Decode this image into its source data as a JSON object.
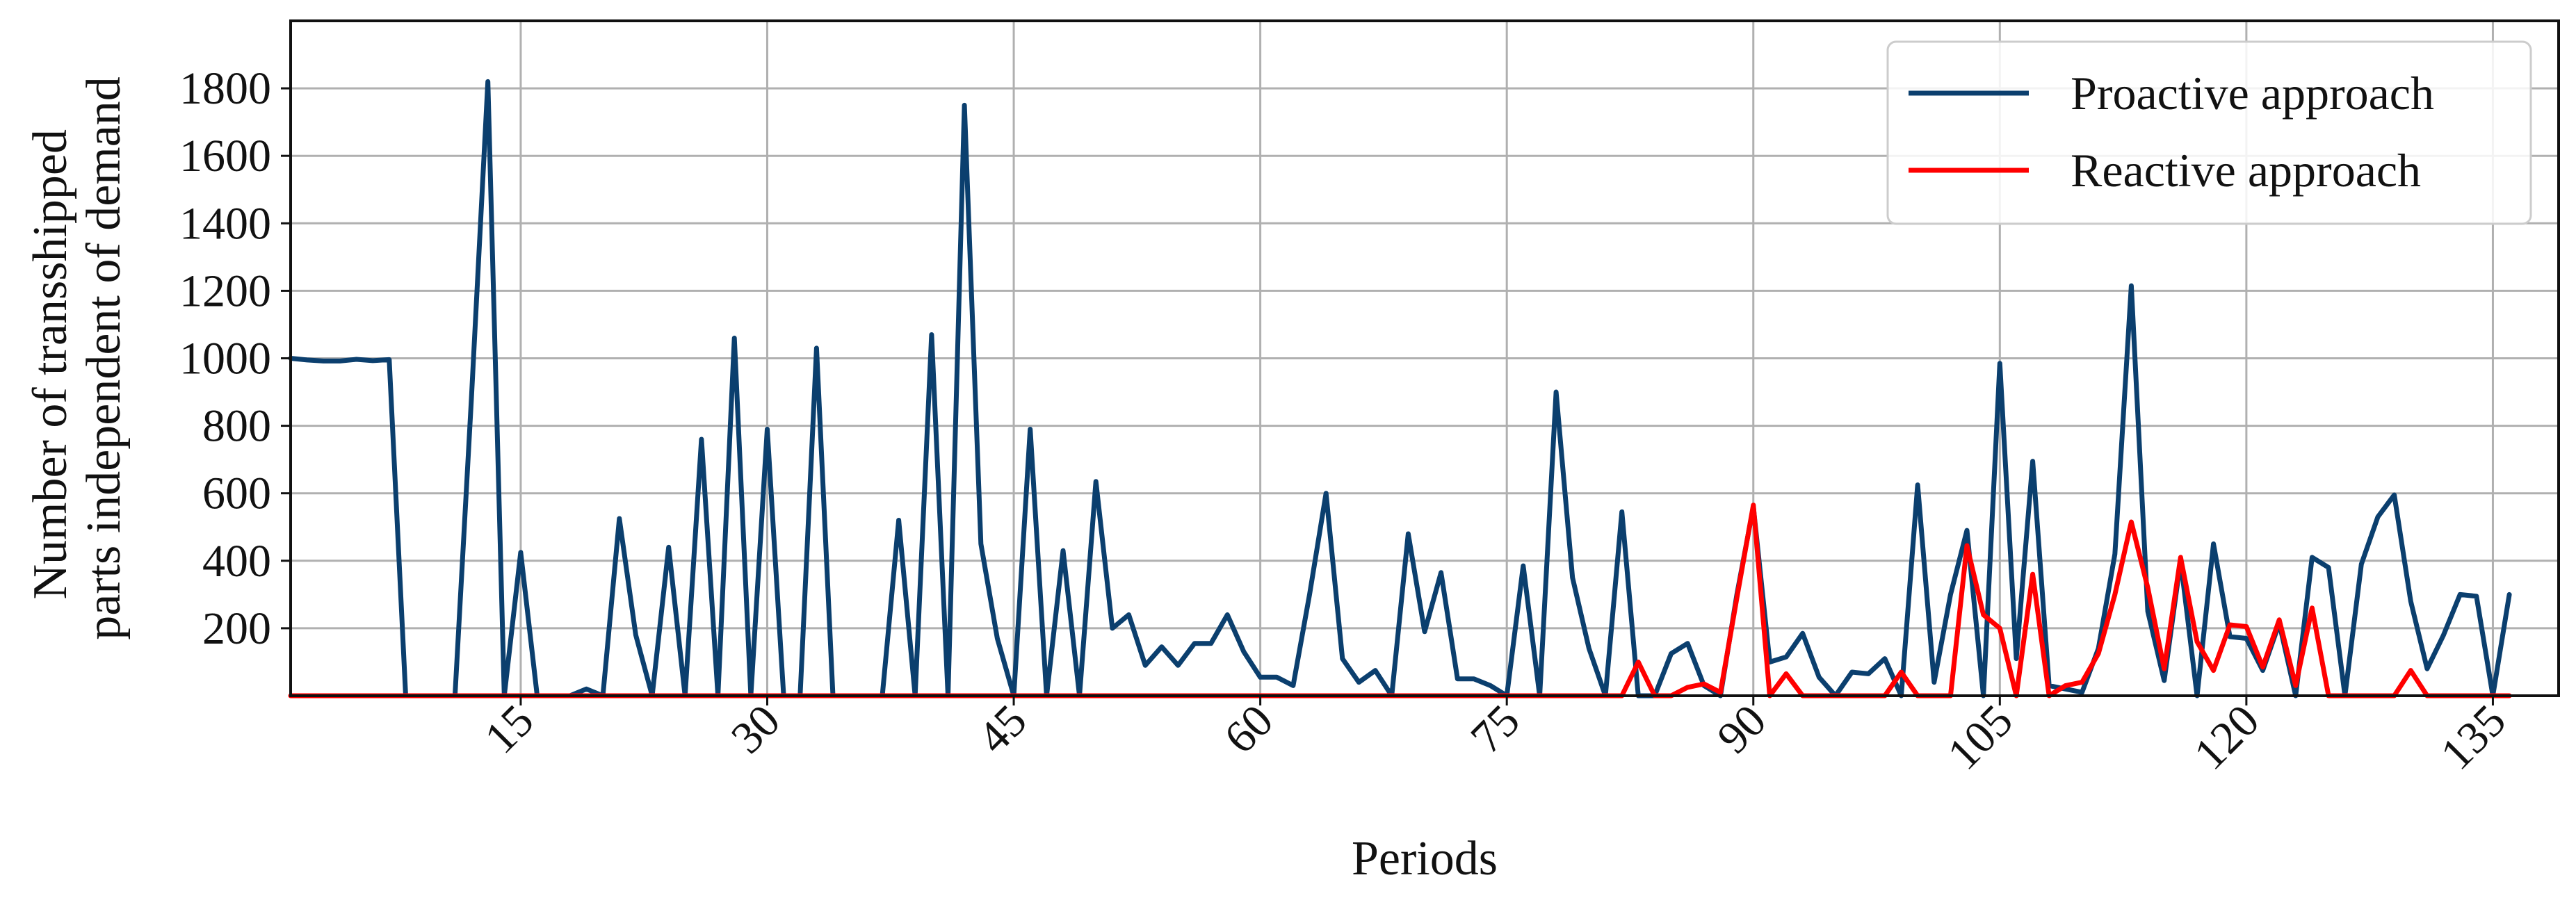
{
  "chart_data": {
    "type": "line",
    "xlabel": "Periods",
    "ylabel": [
      "Number of transshipped",
      "parts independent of demand"
    ],
    "xlim": [
      1,
      139
    ],
    "ylim": [
      0,
      2000
    ],
    "xticks": [
      15,
      30,
      45,
      60,
      75,
      90,
      105,
      120,
      135
    ],
    "yticks": [
      200,
      400,
      600,
      800,
      1000,
      1200,
      1400,
      1600,
      1800
    ],
    "grid": true,
    "legend_position": "top-right",
    "series": [
      {
        "name": "Proactive approach",
        "color": "#0b3f6e",
        "points": [
          [
            1,
            1000
          ],
          [
            2,
            995
          ],
          [
            3,
            992
          ],
          [
            4,
            992
          ],
          [
            5,
            997
          ],
          [
            6,
            993
          ],
          [
            7,
            996
          ],
          [
            8,
            0
          ],
          [
            9,
            0
          ],
          [
            10,
            0
          ],
          [
            11,
            0
          ],
          [
            12,
            880
          ],
          [
            13,
            1820
          ],
          [
            14,
            0
          ],
          [
            15,
            425
          ],
          [
            16,
            0
          ],
          [
            17,
            0
          ],
          [
            18,
            0
          ],
          [
            19,
            20
          ],
          [
            20,
            0
          ],
          [
            21,
            525
          ],
          [
            22,
            180
          ],
          [
            23,
            0
          ],
          [
            24,
            440
          ],
          [
            25,
            0
          ],
          [
            26,
            760
          ],
          [
            27,
            0
          ],
          [
            28,
            1060
          ],
          [
            29,
            0
          ],
          [
            30,
            790
          ],
          [
            31,
            0
          ],
          [
            32,
            0
          ],
          [
            33,
            1030
          ],
          [
            34,
            0
          ],
          [
            35,
            0
          ],
          [
            36,
            0
          ],
          [
            37,
            0
          ],
          [
            38,
            520
          ],
          [
            39,
            0
          ],
          [
            40,
            1070
          ],
          [
            41,
            0
          ],
          [
            42,
            1750
          ],
          [
            43,
            450
          ],
          [
            44,
            170
          ],
          [
            45,
            0
          ],
          [
            46,
            790
          ],
          [
            47,
            0
          ],
          [
            48,
            430
          ],
          [
            49,
            0
          ],
          [
            50,
            635
          ],
          [
            51,
            200
          ],
          [
            52,
            240
          ],
          [
            53,
            90
          ],
          [
            54,
            145
          ],
          [
            55,
            90
          ],
          [
            56,
            155
          ],
          [
            57,
            155
          ],
          [
            58,
            240
          ],
          [
            59,
            130
          ],
          [
            60,
            55
          ],
          [
            61,
            55
          ],
          [
            62,
            30
          ],
          [
            63,
            300
          ],
          [
            64,
            600
          ],
          [
            65,
            110
          ],
          [
            66,
            40
          ],
          [
            67,
            75
          ],
          [
            68,
            0
          ],
          [
            69,
            480
          ],
          [
            70,
            190
          ],
          [
            71,
            365
          ],
          [
            72,
            50
          ],
          [
            73,
            50
          ],
          [
            74,
            30
          ],
          [
            75,
            0
          ],
          [
            76,
            385
          ],
          [
            77,
            0
          ],
          [
            78,
            900
          ],
          [
            79,
            350
          ],
          [
            80,
            140
          ],
          [
            81,
            0
          ],
          [
            82,
            545
          ],
          [
            83,
            0
          ],
          [
            84,
            0
          ],
          [
            85,
            125
          ],
          [
            86,
            155
          ],
          [
            87,
            30
          ],
          [
            88,
            0
          ],
          [
            89,
            300
          ],
          [
            90,
            560
          ],
          [
            91,
            100
          ],
          [
            92,
            115
          ],
          [
            93,
            185
          ],
          [
            94,
            55
          ],
          [
            95,
            0
          ],
          [
            96,
            70
          ],
          [
            97,
            65
          ],
          [
            98,
            110
          ],
          [
            99,
            0
          ],
          [
            100,
            625
          ],
          [
            101,
            40
          ],
          [
            102,
            300
          ],
          [
            103,
            490
          ],
          [
            104,
            0
          ],
          [
            105,
            985
          ],
          [
            106,
            110
          ],
          [
            107,
            695
          ],
          [
            108,
            30
          ],
          [
            109,
            20
          ],
          [
            110,
            10
          ],
          [
            111,
            140
          ],
          [
            112,
            420
          ],
          [
            113,
            1215
          ],
          [
            114,
            250
          ],
          [
            115,
            45
          ],
          [
            116,
            400
          ],
          [
            117,
            0
          ],
          [
            118,
            450
          ],
          [
            119,
            175
          ],
          [
            120,
            170
          ],
          [
            121,
            75
          ],
          [
            122,
            215
          ],
          [
            123,
            0
          ],
          [
            124,
            410
          ],
          [
            125,
            380
          ],
          [
            126,
            0
          ],
          [
            127,
            390
          ],
          [
            128,
            530
          ],
          [
            129,
            595
          ],
          [
            130,
            280
          ],
          [
            131,
            80
          ],
          [
            132,
            180
          ],
          [
            133,
            300
          ],
          [
            134,
            295
          ],
          [
            135,
            0
          ],
          [
            136,
            300
          ]
        ]
      },
      {
        "name": "Reactive approach",
        "color": "#ff0000",
        "points": [
          [
            1,
            0
          ],
          [
            81,
            0
          ],
          [
            82,
            0
          ],
          [
            83,
            100
          ],
          [
            84,
            0
          ],
          [
            85,
            0
          ],
          [
            86,
            25
          ],
          [
            87,
            35
          ],
          [
            88,
            10
          ],
          [
            89,
            290
          ],
          [
            90,
            565
          ],
          [
            91,
            0
          ],
          [
            92,
            65
          ],
          [
            93,
            0
          ],
          [
            94,
            0
          ],
          [
            95,
            0
          ],
          [
            96,
            0
          ],
          [
            97,
            0
          ],
          [
            98,
            0
          ],
          [
            99,
            70
          ],
          [
            100,
            0
          ],
          [
            101,
            0
          ],
          [
            102,
            0
          ],
          [
            103,
            445
          ],
          [
            104,
            240
          ],
          [
            105,
            200
          ],
          [
            106,
            0
          ],
          [
            107,
            360
          ],
          [
            108,
            0
          ],
          [
            109,
            30
          ],
          [
            110,
            40
          ],
          [
            111,
            125
          ],
          [
            112,
            300
          ],
          [
            113,
            515
          ],
          [
            114,
            320
          ],
          [
            115,
            80
          ],
          [
            116,
            410
          ],
          [
            117,
            160
          ],
          [
            118,
            75
          ],
          [
            119,
            210
          ],
          [
            120,
            205
          ],
          [
            121,
            85
          ],
          [
            122,
            225
          ],
          [
            123,
            30
          ],
          [
            124,
            260
          ],
          [
            125,
            0
          ],
          [
            126,
            0
          ],
          [
            127,
            0
          ],
          [
            128,
            0
          ],
          [
            129,
            0
          ],
          [
            130,
            75
          ],
          [
            131,
            0
          ],
          [
            132,
            0
          ],
          [
            133,
            0
          ],
          [
            134,
            0
          ],
          [
            135,
            0
          ],
          [
            136,
            0
          ]
        ]
      }
    ]
  }
}
